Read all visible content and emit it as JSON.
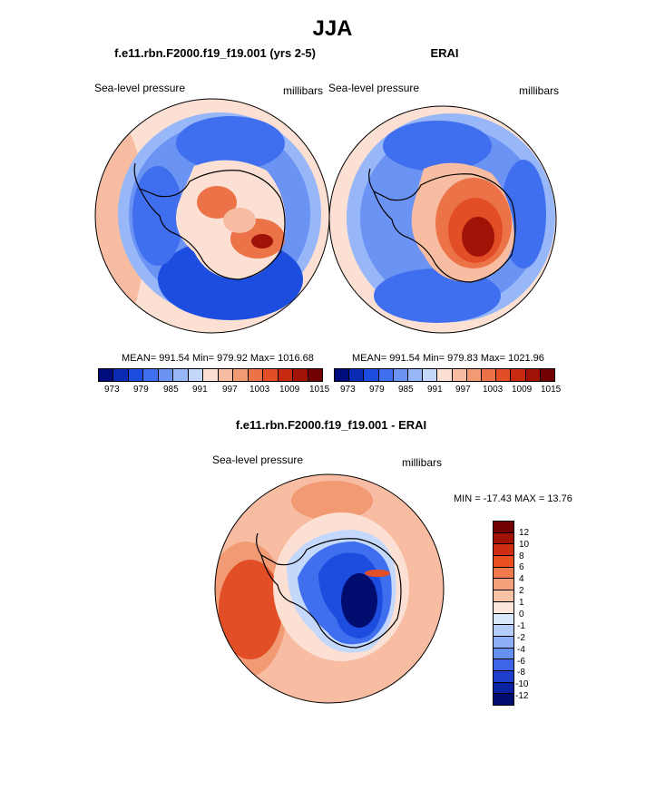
{
  "title": "JJA",
  "left_panel": {
    "case": "f.e11.rbn.F2000.f19_f19.001 (yrs 2-5)",
    "field": "Sea-level pressure",
    "units": "millibars",
    "stats": "MEAN= 991.54  Min= 979.92  Max= 1016.68"
  },
  "right_panel": {
    "case": "ERAI",
    "field": "Sea-level pressure",
    "units": "millibars",
    "stats": "MEAN= 991.54  Min= 979.83  Max= 1021.96"
  },
  "diff_panel": {
    "title": "f.e11.rbn.F2000.f19_f19.001 - ERAI",
    "field": "Sea-level pressure",
    "units": "millibars",
    "minmax": "MIN = -17.43 MAX =  13.76"
  },
  "main_colorbar": {
    "ticks": [
      "973",
      "979",
      "985",
      "991",
      "997",
      "1003",
      "1009",
      "1015"
    ],
    "colors": [
      "#000c7c",
      "#0a2bb3",
      "#1d4ddf",
      "#3f6fee",
      "#6a93f4",
      "#97b7f8",
      "#c4d8fb",
      "#fbe0d3",
      "#f7bca1",
      "#f29a74",
      "#ec7248",
      "#e24e26",
      "#c82a10",
      "#a01306",
      "#730000"
    ]
  },
  "diff_colorbar": {
    "labels": [
      "12",
      "10",
      "8",
      "6",
      "4",
      "2",
      "1",
      "0",
      "-1",
      "-2",
      "-4",
      "-6",
      "-8",
      "-10",
      "-12"
    ],
    "colors": [
      "#730000",
      "#a01306",
      "#cd2e12",
      "#e9501f",
      "#f07a4e",
      "#f4a07a",
      "#f8c2a6",
      "#fde7da",
      "#dbe8fb",
      "#b5cdf8",
      "#8eaff5",
      "#6690ef",
      "#3d66e6",
      "#1d3fcc",
      "#0a22a0",
      "#000c6e"
    ]
  },
  "map_colors": {
    "deep_blue": "#1d4ddf",
    "mid_blue": "#3f6fee",
    "light_blue": "#6a93f4",
    "pale_blue": "#97b7f8",
    "very_pale_blue": "#c4d8fb",
    "pale_orange": "#fbe0d3",
    "light_orange": "#f7bca1",
    "orange": "#f29a74",
    "red_orange": "#ec7248",
    "red": "#e24e26",
    "dark_red": "#a01306"
  }
}
